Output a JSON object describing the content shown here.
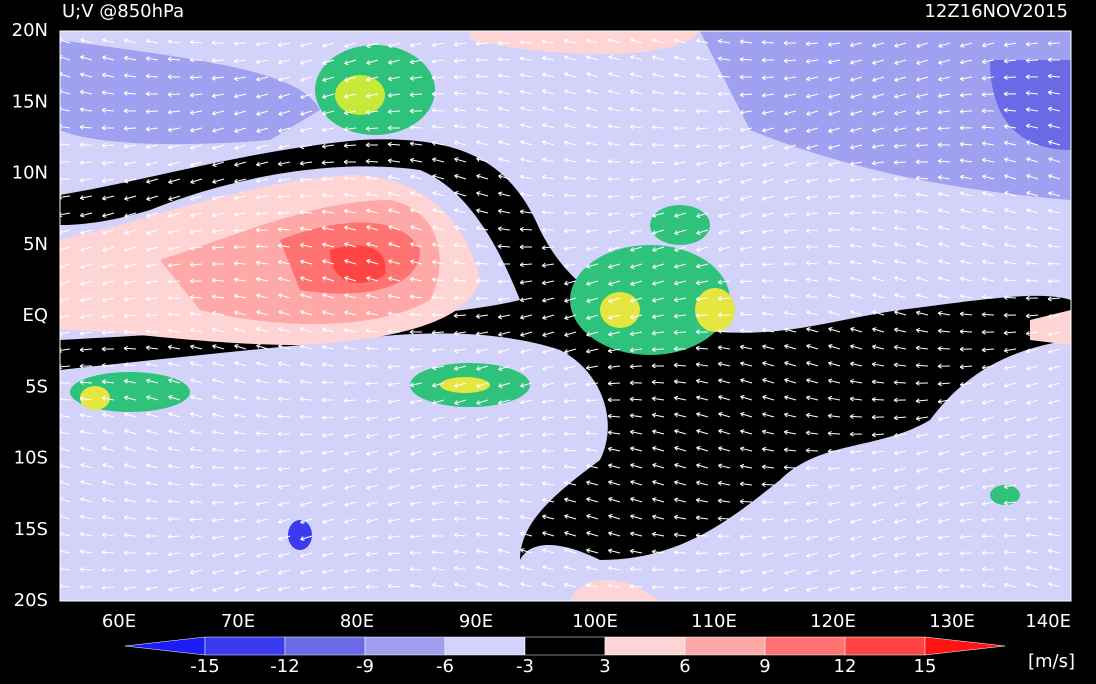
{
  "map": {
    "title": "U;V @850hPa",
    "time": "12Z16NOV2015",
    "lat_labels": [
      "20N",
      "15N",
      "10N",
      "5N",
      "EQ",
      "5S",
      "10S",
      "15S",
      "20S"
    ],
    "lon_labels": [
      "60E",
      "70E",
      "80E",
      "90E",
      "100E",
      "110E",
      "120E",
      "130E",
      "140E"
    ]
  },
  "colorbar": {
    "ticks": [
      -15,
      -12,
      -9,
      -6,
      -3,
      3,
      6,
      9,
      12,
      15
    ],
    "colors": [
      "#1c1cf4",
      "#3a3af0",
      "#6a6ae6",
      "#a0a0f0",
      "#d2d2fa",
      "#000000",
      "#ffd4d4",
      "#ffa8a8",
      "#ff7272",
      "#ff4444",
      "#ff1414"
    ],
    "unit": "[m/s]"
  }
}
